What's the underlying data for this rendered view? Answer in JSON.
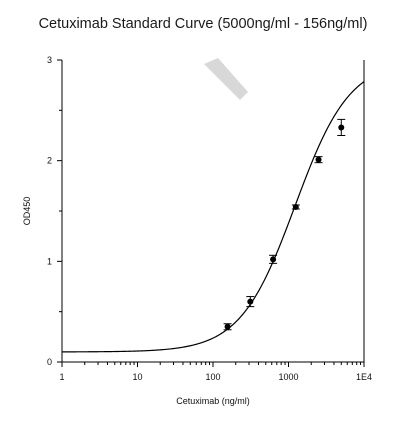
{
  "chart_data": {
    "type": "scatter",
    "title": "Cetuximab Standard Curve (5000ng/ml - 156ng/ml)",
    "xlabel": "Cetuximab (ng/ml)",
    "ylabel": "OD450",
    "x_scale": "log",
    "xlim": [
      1,
      10000
    ],
    "ylim": [
      0,
      3
    ],
    "x_ticks": [
      {
        "value": 1,
        "label": "1"
      },
      {
        "value": 10,
        "label": "10"
      },
      {
        "value": 100,
        "label": "100"
      },
      {
        "value": 1000,
        "label": "1000"
      },
      {
        "value": 10000,
        "label": "1E4"
      }
    ],
    "y_ticks": [
      {
        "value": 0,
        "label": "0"
      },
      {
        "value": 1,
        "label": "1"
      },
      {
        "value": 2,
        "label": "2"
      },
      {
        "value": 3,
        "label": "3"
      }
    ],
    "points": [
      {
        "x": 156,
        "y": 0.35,
        "err": 0.03
      },
      {
        "x": 312,
        "y": 0.6,
        "err": 0.05
      },
      {
        "x": 625,
        "y": 1.02,
        "err": 0.04
      },
      {
        "x": 1250,
        "y": 1.54,
        "err": 0.02
      },
      {
        "x": 2500,
        "y": 2.01,
        "err": 0.03
      },
      {
        "x": 5000,
        "y": 2.33,
        "err": 0.08
      }
    ],
    "fit": {
      "model": "4PL",
      "bottom": 0.1,
      "top": 3.0,
      "ec50": 1220,
      "hill": 1.2
    },
    "grid": false,
    "legend": "none"
  }
}
